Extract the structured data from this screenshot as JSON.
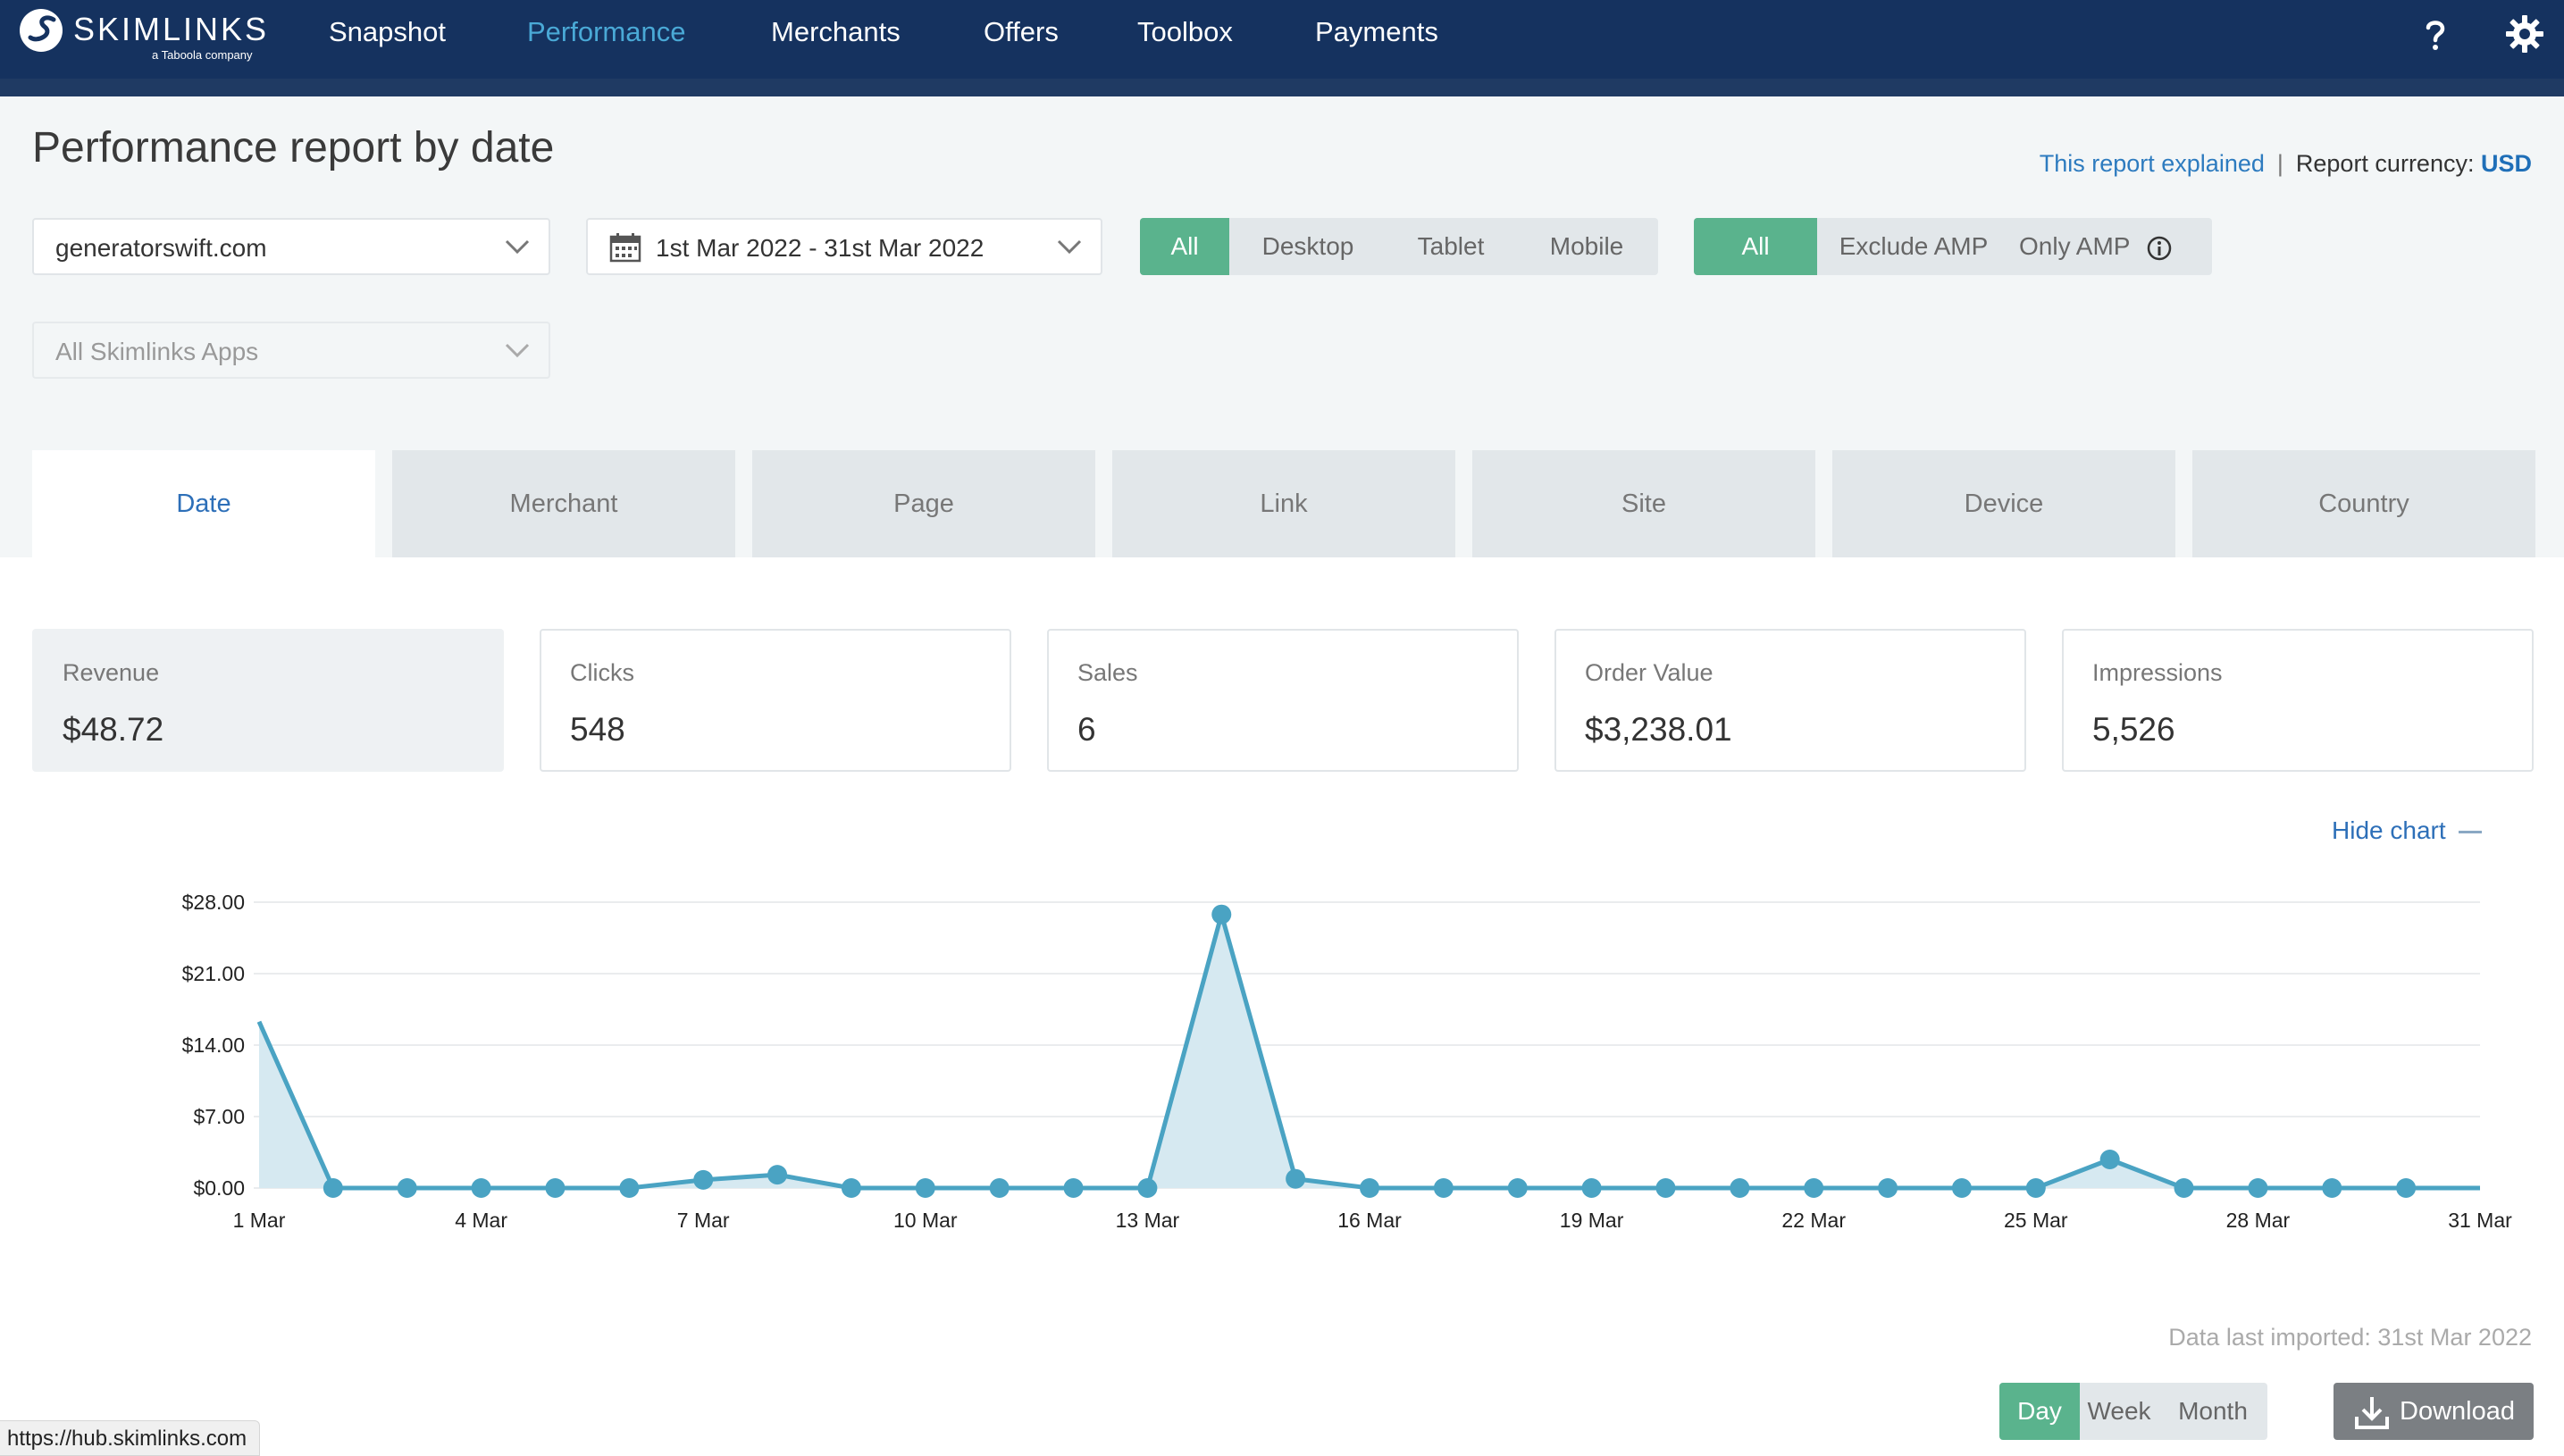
{
  "brand": {
    "name": "SKIMLINKS",
    "tagline": "a Taboola company"
  },
  "nav": {
    "items": [
      {
        "label": "Snapshot",
        "active": false
      },
      {
        "label": "Performance",
        "active": true
      },
      {
        "label": "Merchants",
        "active": false
      },
      {
        "label": "Offers",
        "active": false
      },
      {
        "label": "Toolbox",
        "active": false
      },
      {
        "label": "Payments",
        "active": false
      }
    ],
    "help_icon": "question-mark-icon",
    "settings_icon": "gear-icon"
  },
  "header": {
    "title": "Performance report by date",
    "explained_link": "This report explained",
    "separator": "|",
    "currency_label": "Report currency:",
    "currency_value": "USD"
  },
  "filters": {
    "site": "generatorswift.com",
    "date_range": "1st Mar 2022 - 31st Mar 2022",
    "apps": "All Skimlinks Apps",
    "device": {
      "options": [
        "All",
        "Desktop",
        "Tablet",
        "Mobile"
      ],
      "selected": "All"
    },
    "amp": {
      "options": [
        "All",
        "Exclude AMP",
        "Only AMP"
      ],
      "selected": "All"
    }
  },
  "tabs": {
    "items": [
      "Date",
      "Merchant",
      "Page",
      "Link",
      "Site",
      "Device",
      "Country"
    ],
    "active": "Date"
  },
  "kpis": {
    "revenue": {
      "label": "Revenue",
      "value": "$48.72"
    },
    "clicks": {
      "label": "Clicks",
      "value": "548"
    },
    "sales": {
      "label": "Sales",
      "value": "6"
    },
    "order_value": {
      "label": "Order Value",
      "value": "$3,238.01"
    },
    "impressions": {
      "label": "Impressions",
      "value": "5,526"
    }
  },
  "hide_chart": "Hide chart",
  "chart_data": {
    "type": "area",
    "x": [
      "1 Mar",
      "2 Mar",
      "3 Mar",
      "4 Mar",
      "5 Mar",
      "6 Mar",
      "7 Mar",
      "8 Mar",
      "9 Mar",
      "10 Mar",
      "11 Mar",
      "12 Mar",
      "13 Mar",
      "14 Mar",
      "15 Mar",
      "16 Mar",
      "17 Mar",
      "18 Mar",
      "19 Mar",
      "20 Mar",
      "21 Mar",
      "22 Mar",
      "23 Mar",
      "24 Mar",
      "25 Mar",
      "26 Mar",
      "27 Mar",
      "28 Mar",
      "29 Mar",
      "30 Mar",
      "31 Mar"
    ],
    "series": [
      {
        "values": [
          16.3,
          0,
          0,
          0,
          0,
          0,
          0.8,
          1.3,
          0,
          0,
          0,
          0,
          0,
          26.8,
          0.9,
          0,
          0,
          0,
          0,
          0,
          0,
          0,
          0,
          0,
          0,
          2.8,
          0,
          0,
          0,
          0,
          0
        ]
      }
    ],
    "x_tick_labels": [
      "1 Mar",
      "4 Mar",
      "7 Mar",
      "10 Mar",
      "13 Mar",
      "16 Mar",
      "19 Mar",
      "22 Mar",
      "25 Mar",
      "28 Mar",
      "31 Mar"
    ],
    "y_tick_labels": [
      "$0.00",
      "$7.00",
      "$14.00",
      "$21.00",
      "$28.00"
    ],
    "ylim": [
      0,
      28
    ],
    "grid": true,
    "color": "#4aa3c3",
    "fill": "#d6e9f1"
  },
  "footer": {
    "last_imported": "Data last imported: 31st Mar 2022",
    "period": {
      "options": [
        "Day",
        "Week",
        "Month"
      ],
      "selected": "Day"
    },
    "download": "Download"
  },
  "status_url": "https://hub.skimlinks.com",
  "colors": {
    "nav_bg": "#15325f",
    "accent_green": "#5ab38d",
    "link_blue": "#2d6fb8",
    "active_nav": "#4aa9d6"
  }
}
